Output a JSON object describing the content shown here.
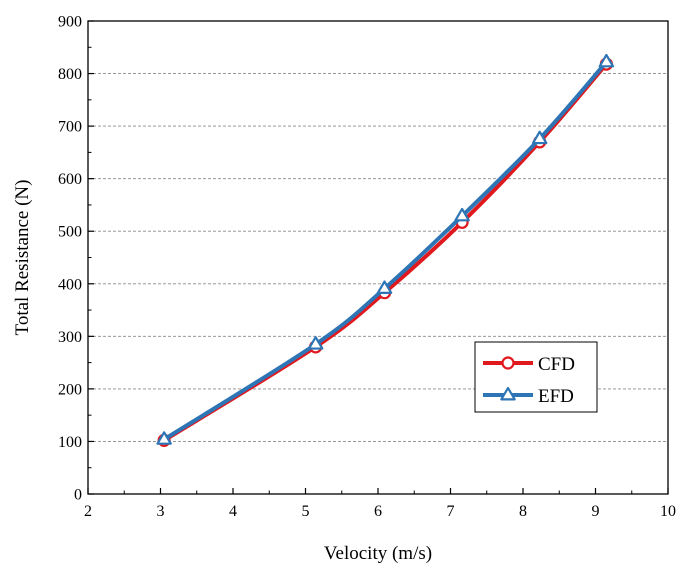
{
  "chart_data": {
    "type": "line",
    "title": "",
    "xlabel": "Velocity (m/s)",
    "ylabel": "Total Resistance (N)",
    "xlim": [
      2,
      10
    ],
    "ylim": [
      0,
      900
    ],
    "xticks": [
      2,
      3,
      4,
      5,
      6,
      7,
      8,
      9,
      10
    ],
    "yticks": [
      0,
      100,
      200,
      300,
      400,
      500,
      600,
      700,
      800,
      900
    ],
    "grid": "horizontal dashed",
    "legend_position": "bottom-right",
    "series": [
      {
        "name": "CFD",
        "color": "#e0191e",
        "marker": "circle",
        "x": [
          3.05,
          5.14,
          6.09,
          7.16,
          8.23,
          9.15
        ],
        "y": [
          102,
          280,
          383,
          517,
          670,
          818
        ]
      },
      {
        "name": "EFD",
        "color": "#2e75b6",
        "marker": "triangle",
        "x": [
          3.05,
          5.14,
          6.09,
          7.16,
          8.23,
          9.15
        ],
        "y": [
          104,
          285,
          391,
          529,
          676,
          822
        ]
      }
    ]
  }
}
